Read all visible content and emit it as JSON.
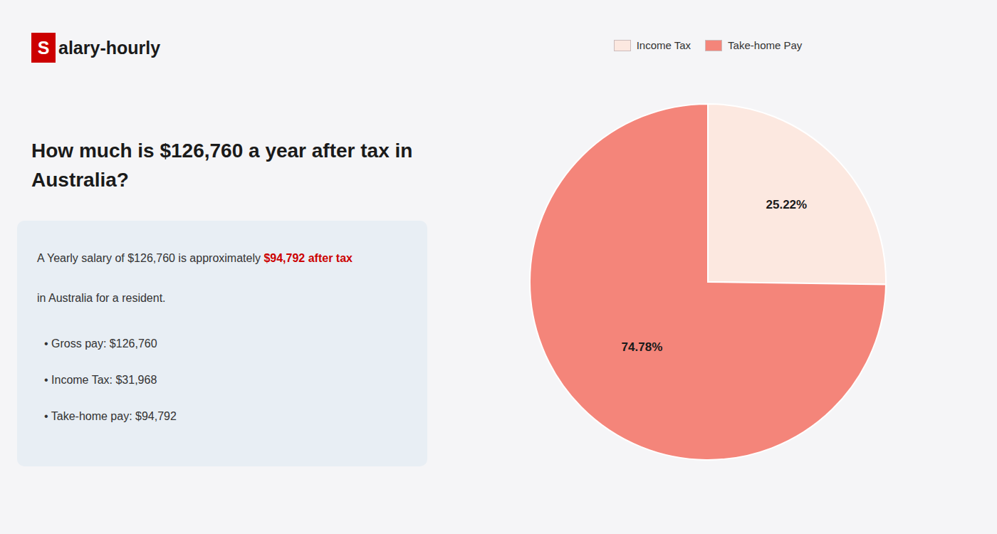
{
  "chart_data": {
    "type": "pie",
    "title": "How much is $126,760 a year after tax in\nAustralia?",
    "annotations": [
      "S",
      "alary-hourly",
      "A Yearly salary of $126,760 is approximately ",
      "$94,792 after tax",
      "in Australia for a resident.",
      "• Gross pay: $126,760",
      "• Income Tax: $31,968",
      "• Take-home pay: $94,792"
    ],
    "categories": [
      "Income Tax",
      "Take-home Pay"
    ],
    "values": [
      25.22,
      74.78
    ],
    "value_labels": [
      "25.22%",
      "74.78%"
    ],
    "colors": [
      "#fce8e0",
      "#f4857a"
    ],
    "data_labels": true,
    "legend": "top"
  }
}
